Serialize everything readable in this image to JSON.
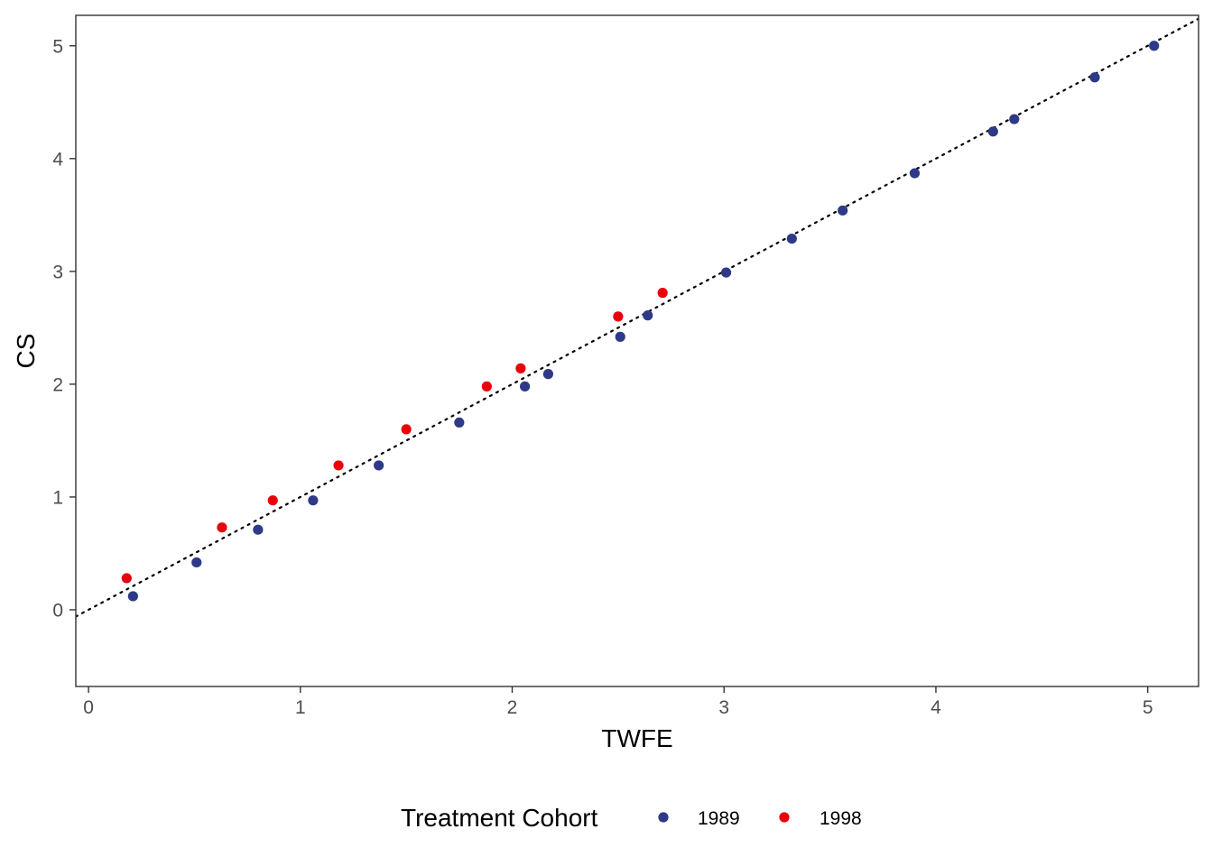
{
  "chart_data": {
    "type": "scatter",
    "title": "",
    "xlabel": "TWFE",
    "ylabel": "CS",
    "xlim": [
      -0.06,
      5.24
    ],
    "ylim": [
      -0.68,
      5.27
    ],
    "x_ticks": [
      0,
      1,
      2,
      3,
      4,
      5
    ],
    "y_ticks": [
      0,
      1,
      2,
      3,
      4,
      5
    ],
    "grid": false,
    "reference_line": {
      "slope": 1,
      "intercept": 0,
      "style": "dotted",
      "color": "#000000"
    },
    "legend": {
      "title": "Treatment Cohort",
      "position": "bottom"
    },
    "series": [
      {
        "name": "1989",
        "color": "#2E3A87",
        "points": [
          [
            0.21,
            0.12
          ],
          [
            0.51,
            0.42
          ],
          [
            0.8,
            0.71
          ],
          [
            1.06,
            0.97
          ],
          [
            1.37,
            1.28
          ],
          [
            1.75,
            1.66
          ],
          [
            2.06,
            1.98
          ],
          [
            2.17,
            2.09
          ],
          [
            2.51,
            2.42
          ],
          [
            2.64,
            2.61
          ],
          [
            3.01,
            2.99
          ],
          [
            3.32,
            3.29
          ],
          [
            3.56,
            3.54
          ],
          [
            3.9,
            3.87
          ],
          [
            4.27,
            4.24
          ],
          [
            4.37,
            4.35
          ],
          [
            4.75,
            4.72
          ],
          [
            5.03,
            5.0
          ]
        ]
      },
      {
        "name": "1998",
        "color": "#E8000B",
        "points": [
          [
            0.18,
            0.28
          ],
          [
            0.63,
            0.73
          ],
          [
            0.87,
            0.97
          ],
          [
            1.18,
            1.28
          ],
          [
            1.5,
            1.6
          ],
          [
            1.88,
            1.98
          ],
          [
            2.04,
            2.14
          ],
          [
            2.5,
            2.6
          ],
          [
            2.71,
            2.81
          ]
        ]
      }
    ]
  }
}
